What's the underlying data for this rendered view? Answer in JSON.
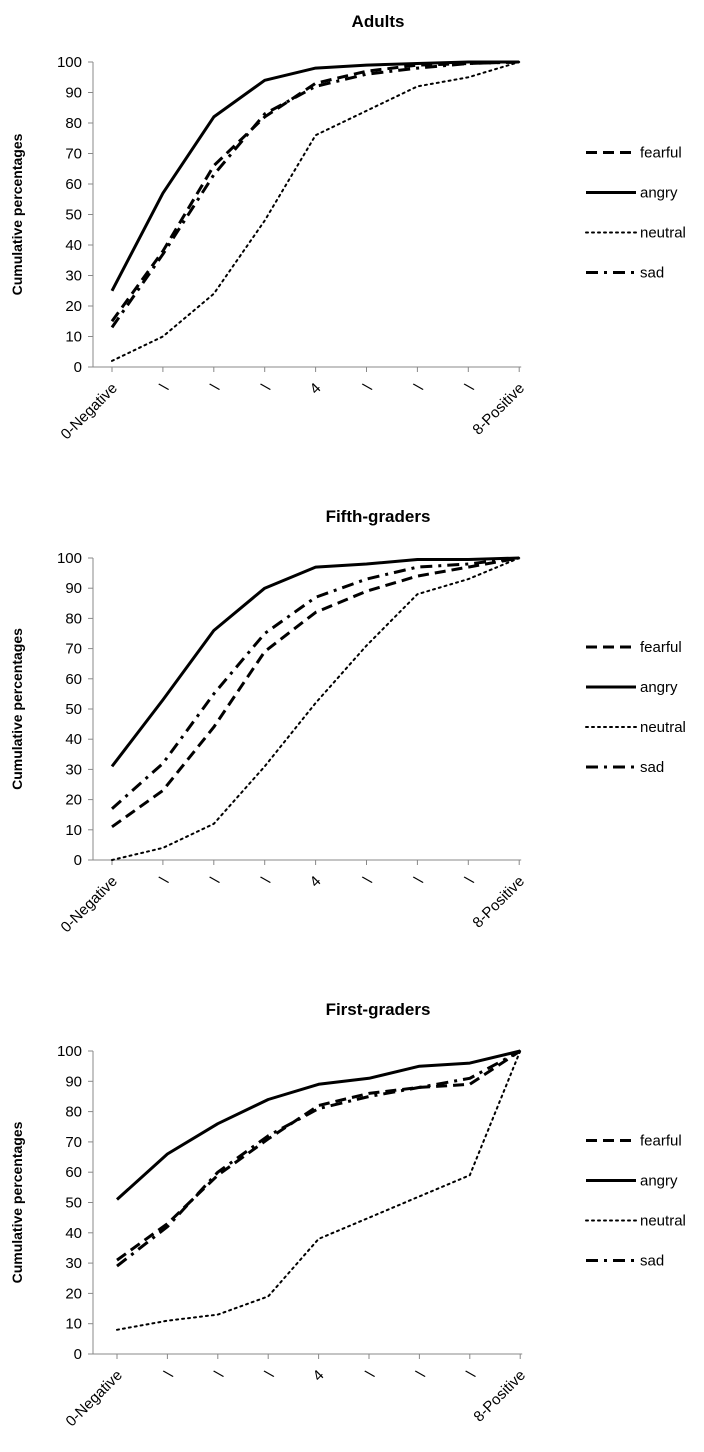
{
  "chart_data": [
    {
      "type": "line",
      "title": "Adults",
      "ylabel": "Cumulative percentages",
      "xlabel": "",
      "ylim": [
        0,
        100
      ],
      "yticks": [
        "0",
        "10",
        "20",
        "30",
        "40",
        "50",
        "60",
        "70",
        "80",
        "90",
        "100"
      ],
      "categories": [
        "0-Negative",
        "\\",
        "\\",
        "\\",
        "4",
        "\\",
        "\\",
        "\\",
        "8-Positive"
      ],
      "legend_position": "right",
      "series": [
        {
          "name": "fearful",
          "style": "dashed",
          "values": [
            15,
            38,
            66,
            82,
            93,
            97,
            99,
            99.5,
            100
          ]
        },
        {
          "name": "angry",
          "style": "solid",
          "values": [
            25,
            57,
            82,
            94,
            98,
            99,
            99.5,
            100,
            100
          ]
        },
        {
          "name": "neutral",
          "style": "dotted",
          "values": [
            2,
            10,
            24,
            48,
            76,
            84,
            92,
            95,
            100
          ]
        },
        {
          "name": "sad",
          "style": "dashdot",
          "values": [
            13,
            37,
            63,
            83,
            92,
            96,
            98,
            99.5,
            100
          ]
        }
      ]
    },
    {
      "type": "line",
      "title": "Fifth-graders",
      "ylabel": "Cumulative percentages",
      "xlabel": "",
      "ylim": [
        0,
        100
      ],
      "yticks": [
        "0",
        "10",
        "20",
        "30",
        "40",
        "50",
        "60",
        "70",
        "80",
        "90",
        "100"
      ],
      "categories": [
        "0-Negative",
        "\\",
        "\\",
        "\\",
        "4",
        "\\",
        "\\",
        "\\",
        "8-Positive"
      ],
      "legend_position": "right",
      "series": [
        {
          "name": "fearful",
          "style": "dashed",
          "values": [
            11,
            23,
            44,
            69,
            82,
            89,
            94,
            97,
            100
          ]
        },
        {
          "name": "angry",
          "style": "solid",
          "values": [
            31,
            53,
            76,
            90,
            97,
            98,
            99.5,
            99.5,
            100
          ]
        },
        {
          "name": "neutral",
          "style": "dotted",
          "values": [
            0,
            4,
            12,
            31,
            52,
            71,
            88,
            93,
            100
          ]
        },
        {
          "name": "sad",
          "style": "dashdot",
          "values": [
            17,
            32,
            55,
            75,
            87,
            93,
            97,
            98,
            100
          ]
        }
      ]
    },
    {
      "type": "line",
      "title": "First-graders",
      "ylabel": "Cumulative percentages",
      "xlabel": "",
      "ylim": [
        0,
        100
      ],
      "yticks": [
        "0",
        "10",
        "20",
        "30",
        "40",
        "50",
        "60",
        "70",
        "80",
        "90",
        "100"
      ],
      "categories": [
        "0-Negative",
        "\\",
        "\\",
        "\\",
        "4",
        "\\",
        "\\",
        "\\",
        "8-Positive"
      ],
      "legend_position": "right",
      "series": [
        {
          "name": "fearful",
          "style": "dashed",
          "values": [
            31,
            43,
            59,
            71,
            82,
            86,
            88,
            89,
            100
          ]
        },
        {
          "name": "angry",
          "style": "solid",
          "values": [
            51,
            66,
            76,
            84,
            89,
            91,
            95,
            96,
            100
          ]
        },
        {
          "name": "neutral",
          "style": "dotted",
          "values": [
            8,
            11,
            13,
            19,
            38,
            45,
            52,
            59,
            100
          ]
        },
        {
          "name": "sad",
          "style": "dashdot",
          "values": [
            29,
            42,
            60,
            72,
            81,
            85,
            88,
            91,
            100
          ]
        }
      ]
    }
  ]
}
